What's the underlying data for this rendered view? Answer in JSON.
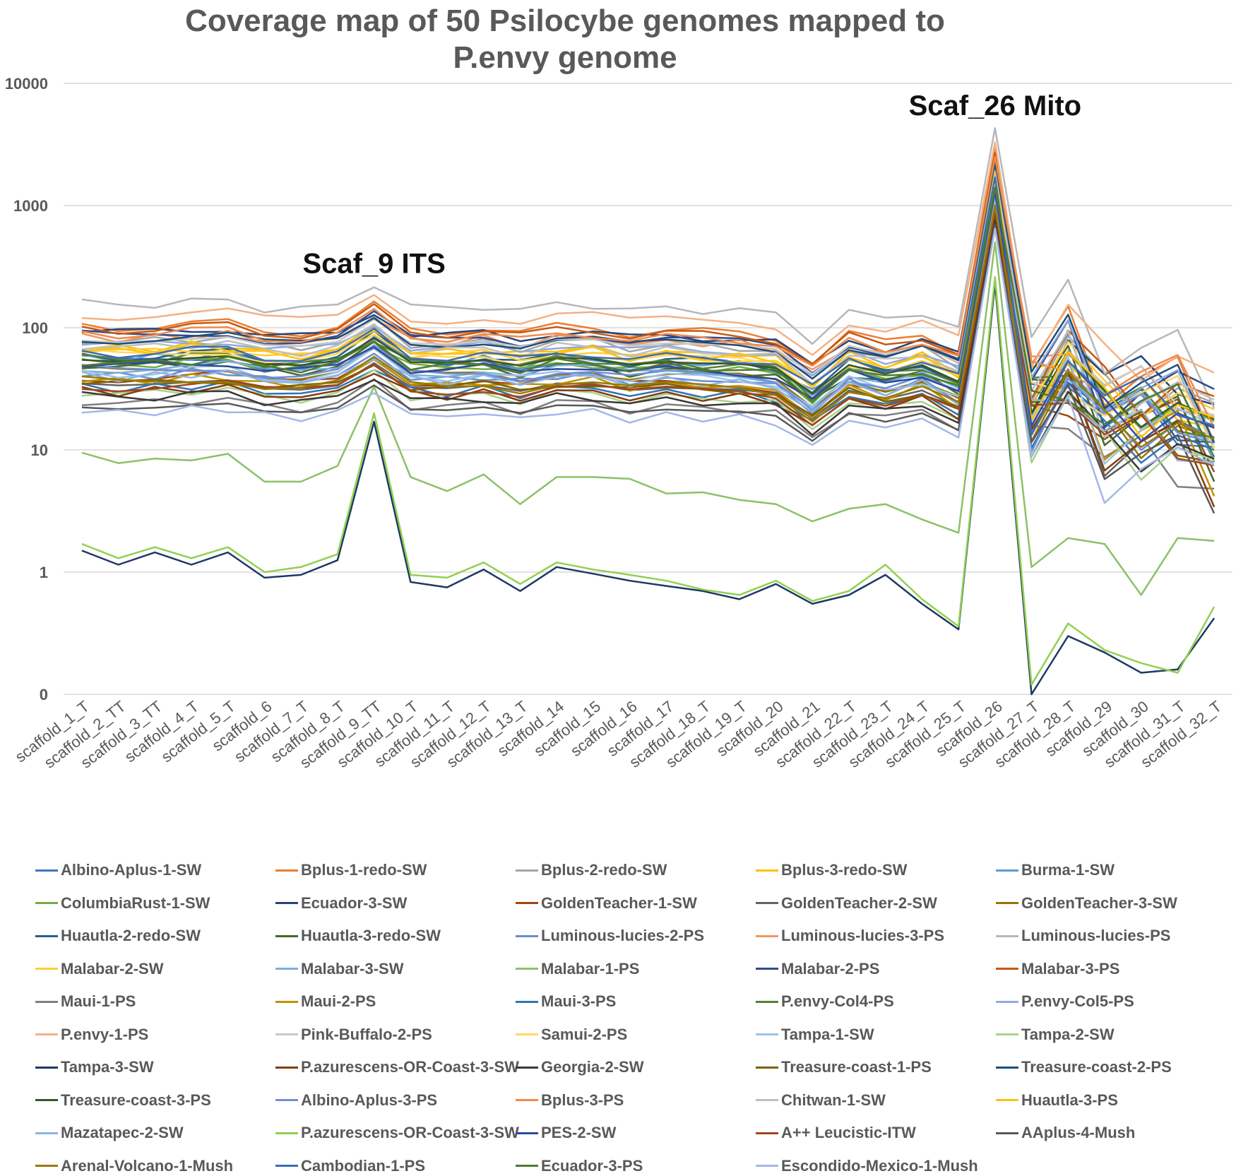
{
  "chart_data": {
    "type": "line",
    "title": "Coverage map of 50 Psilocybe genomes mapped to P.envy genome",
    "title_lines": [
      "Coverage map of 50 Psilocybe genomes mapped to",
      "P.envy genome"
    ],
    "y_scale": "log",
    "ylim": [
      0.1,
      10000
    ],
    "y_ticks": [
      {
        "value": 10000,
        "label": "10000"
      },
      {
        "value": 1000,
        "label": "1000"
      },
      {
        "value": 100,
        "label": "100"
      },
      {
        "value": 10,
        "label": "10"
      },
      {
        "value": 1,
        "label": "1"
      },
      {
        "value": 0.1,
        "label": "0"
      }
    ],
    "grid": true,
    "legend_position": "bottom",
    "categories": [
      "scaffold_1_T",
      "scaffold_2_TT",
      "scaffold_3_TT",
      "scaffold_4_T",
      "scaffold_5_T",
      "scaffold_6",
      "scaffold_7_T",
      "scaffold_8_T",
      "scaffold_9_TT",
      "scaffold_10_T",
      "scaffold_11_T",
      "scaffold_12_T",
      "scaffold_13_T",
      "scaffold_14",
      "scaffold_15",
      "scaffold_16",
      "scaffold_17",
      "scaffold_18_T",
      "scaffold_19_T",
      "scaffold_20",
      "scaffold_21",
      "scaffold_22_T",
      "scaffold_23_T",
      "scaffold_24_T",
      "scaffold_25_T",
      "scaffold_26",
      "scaffold_27_T",
      "scaffold_28_T",
      "scaffold_29",
      "scaffold_30",
      "scaffold_31_T",
      "scaffold_32_T"
    ],
    "annotations": [
      {
        "text": "Scaf_9 ITS",
        "category": "scaffold_9_TT",
        "value": 280
      },
      {
        "text": "Scaf_26 Mito",
        "category": "scaffold_26",
        "value": 5500
      }
    ],
    "series": [
      {
        "name": "Albino-Aplus-1-SW",
        "color": "#4472C4",
        "base": 55,
        "peak": 1400
      },
      {
        "name": "Bplus-1-redo-SW",
        "color": "#ED7D31",
        "base": 105,
        "peak": 3000
      },
      {
        "name": "Bplus-2-redo-SW",
        "color": "#A5A5A5",
        "base": 80,
        "peak": 2000
      },
      {
        "name": "Bplus-3-redo-SW",
        "color": "#FFC000",
        "base": 70,
        "peak": 1800
      },
      {
        "name": "Burma-1-SW",
        "color": "#5B9BD5",
        "base": 58,
        "peak": 1500
      },
      {
        "name": "ColumbiaRust-1-SW",
        "color": "#70AD47",
        "base": 52,
        "peak": 1300
      },
      {
        "name": "Ecuador-3-SW",
        "color": "#264478",
        "base": 95,
        "peak": 2500
      },
      {
        "name": "GoldenTeacher-1-SW",
        "color": "#9E480E",
        "base": 40,
        "peak": 1100
      },
      {
        "name": "GoldenTeacher-2-SW",
        "color": "#636363",
        "base": 35,
        "peak": 900
      },
      {
        "name": "GoldenTeacher-3-SW",
        "color": "#997300",
        "base": 45,
        "peak": 1200
      },
      {
        "name": "Huautla-2-redo-SW",
        "color": "#255E91",
        "base": 60,
        "peak": 1600
      },
      {
        "name": "Huautla-3-redo-SW",
        "color": "#43682B",
        "base": 50,
        "peak": 1300
      },
      {
        "name": "Luminous-lucies-2-PS",
        "color": "#698ED0",
        "base": 42,
        "peak": 1100
      },
      {
        "name": "Luminous-lucies-3-PS",
        "color": "#F1975A",
        "base": 85,
        "peak": 2400
      },
      {
        "name": "Luminous-lucies-PS",
        "color": "#B7B7B7",
        "base": 160,
        "peak": 4300
      },
      {
        "name": "Malabar-2-SW",
        "color": "#FFCD33",
        "base": 65,
        "peak": 1700
      },
      {
        "name": "Malabar-3-SW",
        "color": "#7CAFDD",
        "base": 48,
        "peak": 1200
      },
      {
        "name": "Malabar-1-PS",
        "color": "#8CC168",
        "base": 9.5,
        "peak": 500,
        "low": true
      },
      {
        "name": "Malabar-2-PS",
        "color": "#2F4B8F",
        "base": 88,
        "peak": 2300
      },
      {
        "name": "Malabar-3-PS",
        "color": "#C55A11",
        "base": 100,
        "peak": 2700
      },
      {
        "name": "Maui-1-PS",
        "color": "#7F7F7F",
        "base": 25,
        "peak": 800
      },
      {
        "name": "Maui-2-PS",
        "color": "#BF9000",
        "base": 38,
        "peak": 1000
      },
      {
        "name": "Maui-3-PS",
        "color": "#2E75B6",
        "base": 33,
        "peak": 900
      },
      {
        "name": "P.envy-Col4-PS",
        "color": "#548235",
        "base": 57,
        "peak": 1400
      },
      {
        "name": "P.envy-Col5-PS",
        "color": "#8FAADC",
        "base": 75,
        "peak": 2000
      },
      {
        "name": "P.envy-1-PS",
        "color": "#F4B183",
        "base": 130,
        "peak": 3300
      },
      {
        "name": "Pink-Buffalo-2-PS",
        "color": "#C9C9C9",
        "base": 78,
        "peak": 2100
      },
      {
        "name": "Samui-2-PS",
        "color": "#FFD966",
        "base": 62,
        "peak": 1600
      },
      {
        "name": "Tampa-1-SW",
        "color": "#9DC3E6",
        "base": 44,
        "peak": 1100
      },
      {
        "name": "Tampa-2-SW",
        "color": "#A9D18E",
        "base": 30,
        "peak": 800
      },
      {
        "name": "Tampa-3-SW",
        "color": "#1F3864",
        "base": 1.5,
        "peak": 230,
        "low": true,
        "lowest": true
      },
      {
        "name": "P.azurescens-OR-Coast-3-SW",
        "color": "#843C0C",
        "base": 31,
        "peak": 850
      },
      {
        "name": "Georgia-2-SW",
        "color": "#3B3838",
        "base": 28,
        "peak": 750
      },
      {
        "name": "Treasure-coast-1-PS",
        "color": "#7F6000",
        "base": 36,
        "peak": 950
      },
      {
        "name": "Treasure-coast-2-PS",
        "color": "#1F4E79",
        "base": 83,
        "peak": 2200
      },
      {
        "name": "Treasure-coast-3-PS",
        "color": "#375623",
        "base": 54,
        "peak": 1400
      },
      {
        "name": "Albino-Aplus-3-PS",
        "color": "#6F8FD6",
        "base": 46,
        "peak": 1200
      },
      {
        "name": "Bplus-3-PS",
        "color": "#F08A4B",
        "base": 92,
        "peak": 2500
      },
      {
        "name": "Chitwan-1-SW",
        "color": "#BFBFBF",
        "base": 72,
        "peak": 1900
      },
      {
        "name": "Huautla-3-PS",
        "color": "#FFC20E",
        "base": 67,
        "peak": 1800
      },
      {
        "name": "Mazatapec-2-SW",
        "color": "#8EB4E3",
        "base": 41,
        "peak": 1100
      },
      {
        "name": "P.azurescens-OR-Coast-3-SW",
        "color": "#92D050",
        "base": 1.7,
        "peak": 260,
        "low": true
      },
      {
        "name": "PES-2-SW",
        "color": "#2E4C9C",
        "base": 50,
        "peak": 1300
      },
      {
        "name": "A++ Leucistic-ITW",
        "color": "#A0471C",
        "base": 34,
        "peak": 900
      },
      {
        "name": "AAplus-4-Mush",
        "color": "#595959",
        "base": 22,
        "peak": 700
      },
      {
        "name": "Arenal-Volcano-1-Mush",
        "color": "#997A00",
        "base": 37,
        "peak": 1000
      },
      {
        "name": "Cambodian-1-PS",
        "color": "#3A6DB5",
        "base": 64,
        "peak": 1700
      },
      {
        "name": "Ecuador-3-PS",
        "color": "#4E7A30",
        "base": 53,
        "peak": 1400
      },
      {
        "name": "Escondido-Mexico-1-Mush",
        "color": "#A4B8E8",
        "base": 21,
        "peak": 650
      }
    ],
    "profile": [
      1.0,
      0.96,
      0.98,
      1.02,
      1.05,
      0.9,
      0.88,
      0.95,
      1.45,
      0.92,
      0.9,
      0.95,
      0.85,
      0.98,
      0.97,
      0.86,
      0.9,
      0.88,
      0.87,
      0.8,
      0.5,
      0.85,
      0.72,
      0.85,
      0.62,
      0,
      0.42,
      0.95,
      0.35,
      0.38,
      0.4,
      0.22
    ],
    "low_values": {
      "Malabar-1-PS": [
        9.5,
        7.8,
        8.5,
        8.2,
        9.3,
        5.5,
        5.5,
        7.4,
        33,
        6.0,
        4.6,
        6.3,
        3.6,
        6.0,
        6.0,
        5.8,
        4.4,
        4.5,
        3.9,
        3.6,
        2.6,
        3.3,
        3.6,
        2.7,
        2.1,
        500,
        1.1,
        1.9,
        1.7,
        0.65,
        1.9,
        1.8
      ],
      "P.azurescens-OR-Coast-3-SW": [
        1.7,
        1.3,
        1.6,
        1.3,
        1.6,
        1.0,
        1.1,
        1.4,
        20,
        0.95,
        0.9,
        1.2,
        0.8,
        1.2,
        1.05,
        0.95,
        0.85,
        0.72,
        0.65,
        0.85,
        0.58,
        0.7,
        1.15,
        0.6,
        0.36,
        260,
        0.12,
        0.38,
        0.23,
        0.18,
        0.15,
        0.52
      ],
      "Tampa-3-SW": [
        1.5,
        1.15,
        1.45,
        1.15,
        1.45,
        0.9,
        0.95,
        1.25,
        17,
        0.83,
        0.75,
        1.05,
        0.7,
        1.1,
        0.97,
        0.85,
        0.77,
        0.7,
        0.6,
        0.8,
        0.55,
        0.65,
        0.95,
        0.55,
        0.34,
        230,
        0.1,
        0.3,
        0.22,
        0.15,
        0.16,
        0.42
      ]
    }
  }
}
